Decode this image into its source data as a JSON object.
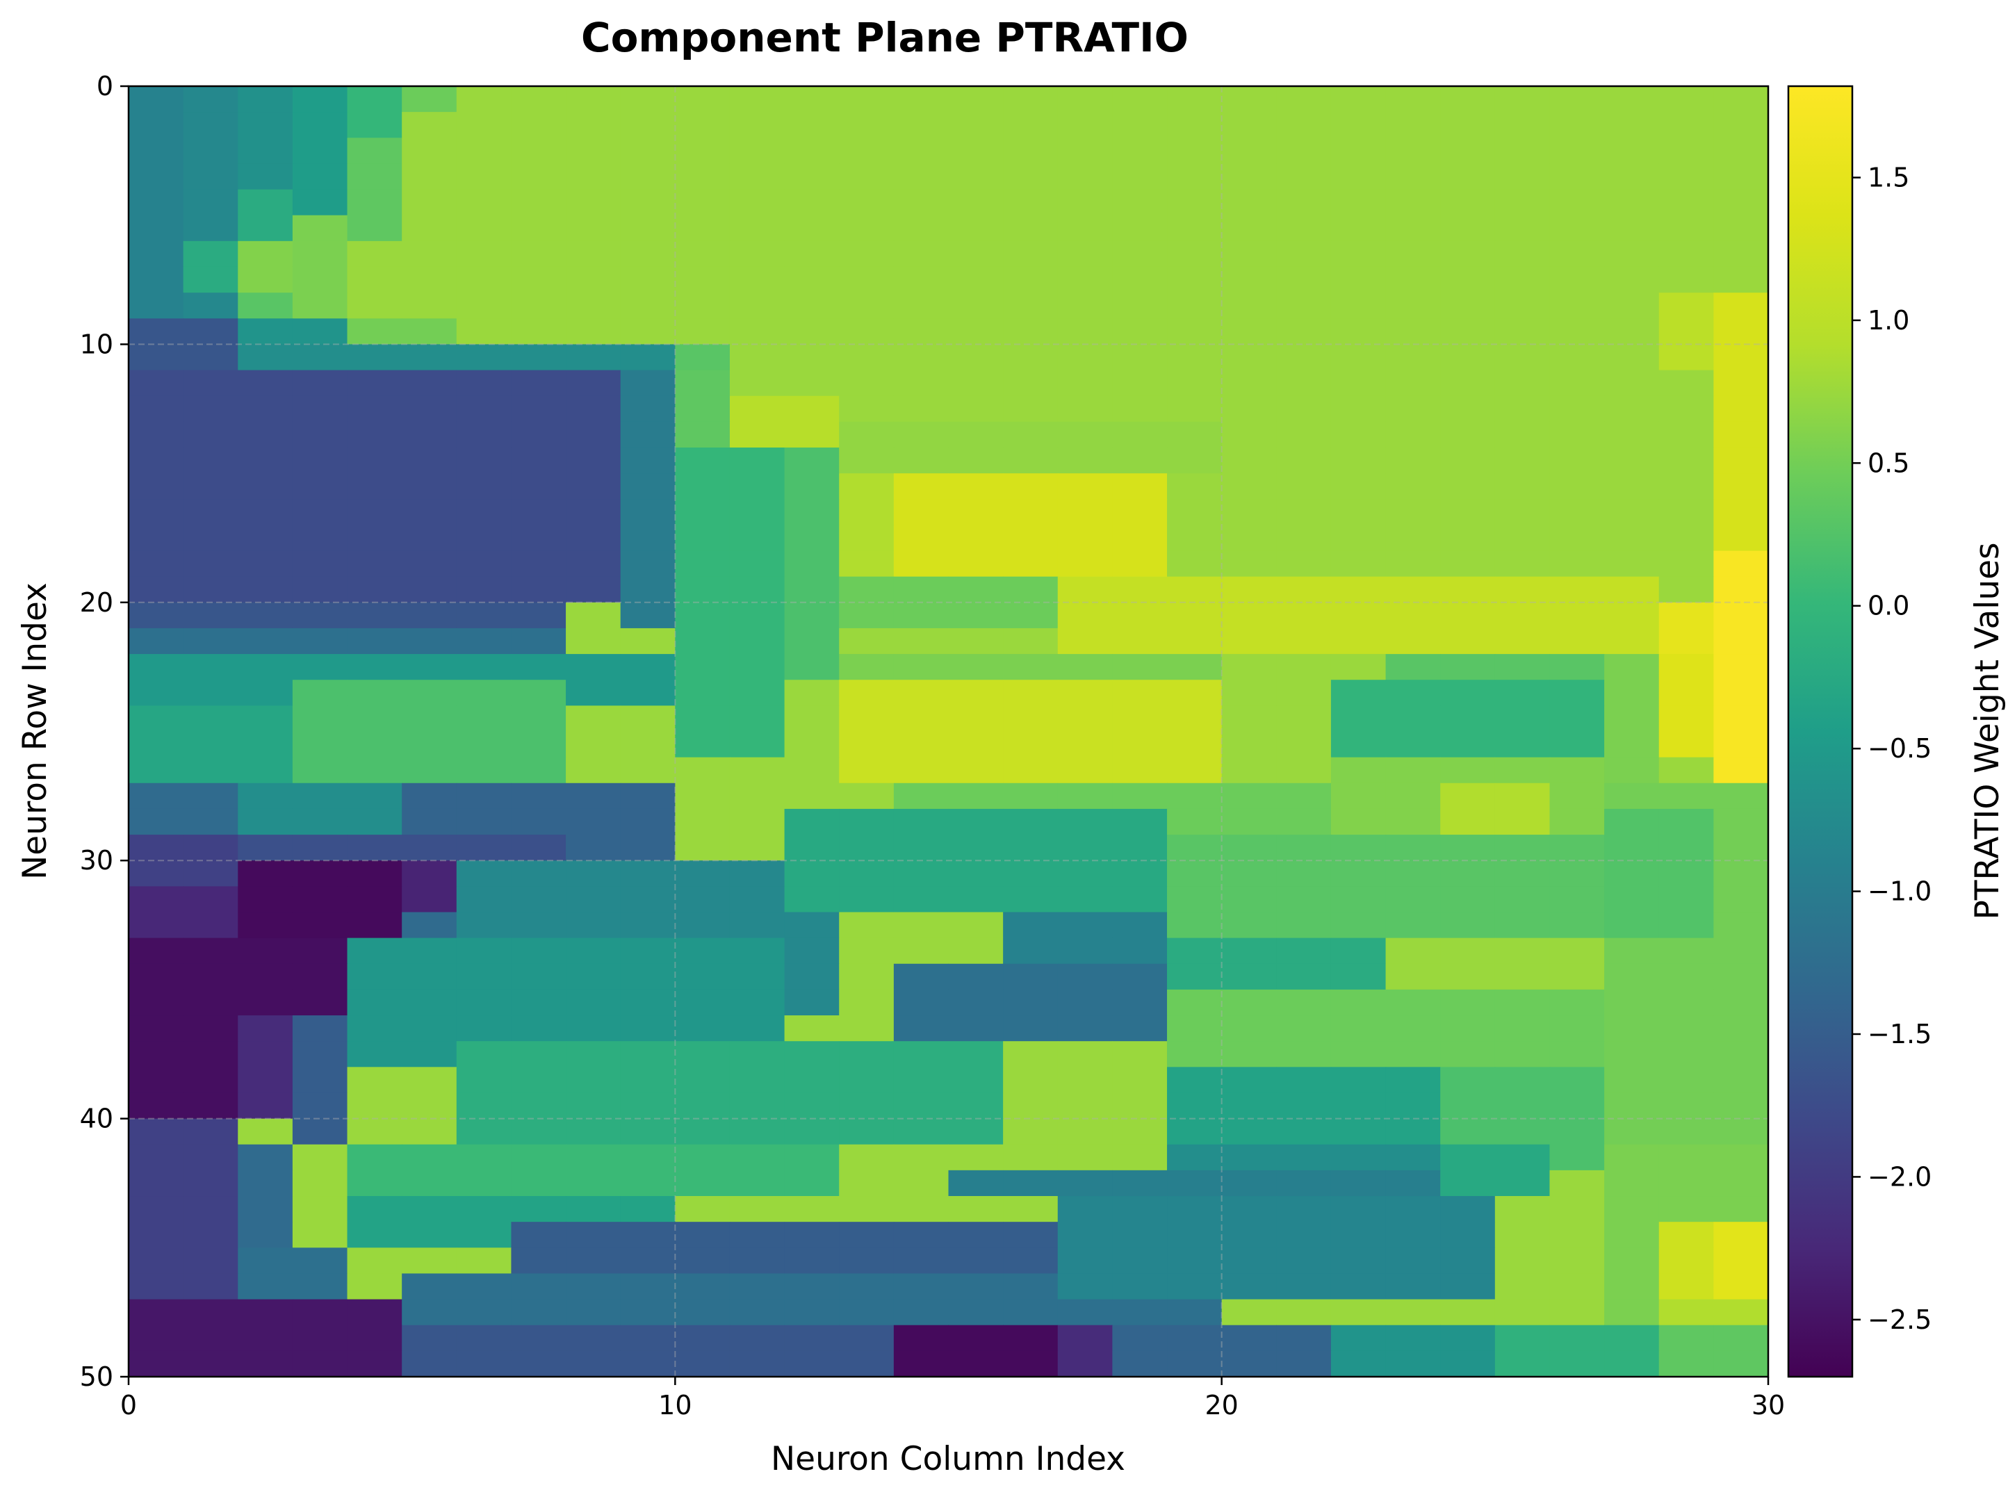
{
  "chart_data": {
    "type": "heatmap",
    "title": "Component Plane PTRATIO",
    "xlabel": "Neuron Column Index",
    "ylabel": "Neuron Row Index",
    "colorbar_label": "PTRATIO Weight Values",
    "colormap": "viridis",
    "xlim": [
      0,
      30
    ],
    "ylim": [
      50,
      0
    ],
    "x_ticks": [
      "0",
      "10",
      "20",
      "30"
    ],
    "y_ticks": [
      "0",
      "10",
      "20",
      "30",
      "40",
      "50"
    ],
    "colorbar_ticks": [
      "1.5",
      "1.0",
      "0.5",
      "0.0",
      "−0.5",
      "−1.0",
      "−1.5",
      "−2.0",
      "−2.5"
    ],
    "colorbar_tick_values": [
      1.5,
      1.0,
      0.5,
      0.0,
      -0.5,
      -1.0,
      -1.5,
      -2.0,
      -2.5
    ],
    "vmin": -2.7,
    "vmax": 1.82,
    "grid": true,
    "grid_style": "dashed",
    "n_rows": 50,
    "n_cols": 30,
    "regions": [
      {
        "rows": [
          0,
          50
        ],
        "cols": [
          0,
          30
        ],
        "value": 0.75
      },
      {
        "rows": [
          0,
          9
        ],
        "cols": [
          0,
          1
        ],
        "value": -0.9
      },
      {
        "rows": [
          0,
          9
        ],
        "cols": [
          1,
          2
        ],
        "value": -0.8
      },
      {
        "rows": [
          0,
          4
        ],
        "cols": [
          2,
          3
        ],
        "value": -0.65
      },
      {
        "rows": [
          4,
          6
        ],
        "cols": [
          2,
          3
        ],
        "value": -0.2
      },
      {
        "rows": [
          6,
          8
        ],
        "cols": [
          2,
          3
        ],
        "value": 0.6
      },
      {
        "rows": [
          8,
          9
        ],
        "cols": [
          2,
          3
        ],
        "value": 0.3
      },
      {
        "rows": [
          0,
          5
        ],
        "cols": [
          3,
          4
        ],
        "value": -0.45
      },
      {
        "rows": [
          5,
          9
        ],
        "cols": [
          3,
          4
        ],
        "value": 0.55
      },
      {
        "rows": [
          0,
          2
        ],
        "cols": [
          4,
          5
        ],
        "value": 0.0
      },
      {
        "rows": [
          2,
          6
        ],
        "cols": [
          4,
          5
        ],
        "value": 0.35
      },
      {
        "rows": [
          0,
          1
        ],
        "cols": [
          5,
          6
        ],
        "value": 0.45
      },
      {
        "rows": [
          6,
          8
        ],
        "cols": [
          1,
          2
        ],
        "value": -0.2
      },
      {
        "rows": [
          9,
          11
        ],
        "cols": [
          0,
          2
        ],
        "value": -1.6
      },
      {
        "rows": [
          9,
          10
        ],
        "cols": [
          2,
          4
        ],
        "value": -0.6
      },
      {
        "rows": [
          9,
          10
        ],
        "cols": [
          4,
          6
        ],
        "value": 0.5
      },
      {
        "rows": [
          10,
          11
        ],
        "cols": [
          2,
          10
        ],
        "value": -0.7
      },
      {
        "rows": [
          11,
          20
        ],
        "cols": [
          0,
          9
        ],
        "value": -1.75
      },
      {
        "rows": [
          20,
          21
        ],
        "cols": [
          0,
          8
        ],
        "value": -1.6
      },
      {
        "rows": [
          21,
          22
        ],
        "cols": [
          0,
          8
        ],
        "value": -1.2
      },
      {
        "rows": [
          11,
          21
        ],
        "cols": [
          9,
          10
        ],
        "value": -1.0
      },
      {
        "rows": [
          22,
          24
        ],
        "cols": [
          0,
          10
        ],
        "value": -0.5
      },
      {
        "rows": [
          23,
          27
        ],
        "cols": [
          3,
          8
        ],
        "value": 0.2
      },
      {
        "rows": [
          24,
          27
        ],
        "cols": [
          0,
          3
        ],
        "value": -0.3
      },
      {
        "rows": [
          27,
          29
        ],
        "cols": [
          0,
          2
        ],
        "value": -1.3
      },
      {
        "rows": [
          27,
          30
        ],
        "cols": [
          2,
          5
        ],
        "value": -0.7
      },
      {
        "rows": [
          27,
          30
        ],
        "cols": [
          5,
          10
        ],
        "value": -1.4
      },
      {
        "rows": [
          29,
          31
        ],
        "cols": [
          0,
          2
        ],
        "value": -1.9
      },
      {
        "rows": [
          29,
          30
        ],
        "cols": [
          2,
          8
        ],
        "value": -1.7
      },
      {
        "rows": [
          30,
          33
        ],
        "cols": [
          2,
          5
        ],
        "value": -2.6
      },
      {
        "rows": [
          30,
          32
        ],
        "cols": [
          5,
          6
        ],
        "value": -2.3
      },
      {
        "rows": [
          31,
          33
        ],
        "cols": [
          0,
          2
        ],
        "value": -2.25
      },
      {
        "rows": [
          33,
          42
        ],
        "cols": [
          0,
          2
        ],
        "value": -2.55
      },
      {
        "rows": [
          33,
          36
        ],
        "cols": [
          2,
          4
        ],
        "value": -2.55
      },
      {
        "rows": [
          36,
          40
        ],
        "cols": [
          2,
          3
        ],
        "value": -2.2
      },
      {
        "rows": [
          36,
          41
        ],
        "cols": [
          3,
          4
        ],
        "value": -1.5
      },
      {
        "rows": [
          40,
          47
        ],
        "cols": [
          0,
          2
        ],
        "value": -1.9
      },
      {
        "rows": [
          47,
          50
        ],
        "cols": [
          0,
          5
        ],
        "value": -2.45
      },
      {
        "rows": [
          45,
          47
        ],
        "cols": [
          2,
          4
        ],
        "value": -1.2
      },
      {
        "rows": [
          41,
          45
        ],
        "cols": [
          2,
          3
        ],
        "value": -1.3
      },
      {
        "rows": [
          32,
          34
        ],
        "cols": [
          5,
          7
        ],
        "value": -1.3
      },
      {
        "rows": [
          30,
          36
        ],
        "cols": [
          6,
          13
        ],
        "value": -0.8
      },
      {
        "rows": [
          33,
          38
        ],
        "cols": [
          4,
          12
        ],
        "value": -0.55
      },
      {
        "rows": [
          37,
          41
        ],
        "cols": [
          6,
          16
        ],
        "value": -0.15
      },
      {
        "rows": [
          41,
          43
        ],
        "cols": [
          4,
          13
        ],
        "value": 0.05
      },
      {
        "rows": [
          43,
          45
        ],
        "cols": [
          4,
          10
        ],
        "value": -0.35
      },
      {
        "rows": [
          44,
          46
        ],
        "cols": [
          7,
          17
        ],
        "value": -1.5
      },
      {
        "rows": [
          46,
          48
        ],
        "cols": [
          5,
          20
        ],
        "value": -1.2
      },
      {
        "rows": [
          48,
          50
        ],
        "cols": [
          5,
          14
        ],
        "value": -1.6
      },
      {
        "rows": [
          48,
          50
        ],
        "cols": [
          14,
          17
        ],
        "value": -2.6
      },
      {
        "rows": [
          48,
          50
        ],
        "cols": [
          17,
          18
        ],
        "value": -2.2
      },
      {
        "rows": [
          48,
          50
        ],
        "cols": [
          18,
          22
        ],
        "value": -1.4
      },
      {
        "rows": [
          48,
          50
        ],
        "cols": [
          22,
          25
        ],
        "value": -0.6
      },
      {
        "rows": [
          48,
          50
        ],
        "cols": [
          25,
          28
        ],
        "value": -0.1
      },
      {
        "rows": [
          48,
          50
        ],
        "cols": [
          28,
          30
        ],
        "value": 0.35
      },
      {
        "rows": [
          43,
          47
        ],
        "cols": [
          17,
          25
        ],
        "value": -0.85
      },
      {
        "rows": [
          42,
          43
        ],
        "cols": [
          15,
          24
        ],
        "value": -0.95
      },
      {
        "rows": [
          40,
          42
        ],
        "cols": [
          19,
          24
        ],
        "value": -0.7
      },
      {
        "rows": [
          38,
          42
        ],
        "cols": [
          24,
          27
        ],
        "value": 0.2
      },
      {
        "rows": [
          41,
          48
        ],
        "cols": [
          27,
          30
        ],
        "value": 0.55
      },
      {
        "rows": [
          44,
          48
        ],
        "cols": [
          28,
          29
        ],
        "value": 1.2
      },
      {
        "rows": [
          44,
          48
        ],
        "cols": [
          29,
          30
        ],
        "value": 1.45
      },
      {
        "rows": [
          47,
          48
        ],
        "cols": [
          28,
          30
        ],
        "value": 0.9
      },
      {
        "rows": [
          10,
          11
        ],
        "cols": [
          10,
          11
        ],
        "value": 0.3
      },
      {
        "rows": [
          11,
          14
        ],
        "cols": [
          10,
          11
        ],
        "value": 0.35
      },
      {
        "rows": [
          14,
          26
        ],
        "cols": [
          10,
          12
        ],
        "value": 0.0
      },
      {
        "rows": [
          12,
          14
        ],
        "cols": [
          11,
          13
        ],
        "value": 0.95
      },
      {
        "rows": [
          14,
          23
        ],
        "cols": [
          12,
          13
        ],
        "value": 0.2
      },
      {
        "rows": [
          13,
          15
        ],
        "cols": [
          13,
          20
        ],
        "value": 0.7
      },
      {
        "rows": [
          15,
          19
        ],
        "cols": [
          13,
          14
        ],
        "value": 0.9
      },
      {
        "rows": [
          15,
          19
        ],
        "cols": [
          14,
          19
        ],
        "value": 1.3
      },
      {
        "rows": [
          19,
          21
        ],
        "cols": [
          13,
          17
        ],
        "value": 0.45
      },
      {
        "rows": [
          19,
          22
        ],
        "cols": [
          17,
          28
        ],
        "value": 1.1
      },
      {
        "rows": [
          20,
          22
        ],
        "cols": [
          28,
          29
        ],
        "value": 1.5
      },
      {
        "rows": [
          18,
          27
        ],
        "cols": [
          29,
          30
        ],
        "value": 1.75
      },
      {
        "rows": [
          8,
          18
        ],
        "cols": [
          29,
          30
        ],
        "value": 1.3
      },
      {
        "rows": [
          8,
          11
        ],
        "cols": [
          28,
          29
        ],
        "value": 1.0
      },
      {
        "rows": [
          22,
          23
        ],
        "cols": [
          13,
          21
        ],
        "value": 0.55
      },
      {
        "rows": [
          23,
          27
        ],
        "cols": [
          13,
          20
        ],
        "value": 1.15
      },
      {
        "rows": [
          22,
          28
        ],
        "cols": [
          20,
          22
        ],
        "value": 0.75
      },
      {
        "rows": [
          23,
          26
        ],
        "cols": [
          22,
          27
        ],
        "value": -0.05
      },
      {
        "rows": [
          22,
          23
        ],
        "cols": [
          23,
          27
        ],
        "value": 0.3
      },
      {
        "rows": [
          26,
          29
        ],
        "cols": [
          22,
          27
        ],
        "value": 0.6
      },
      {
        "rows": [
          27,
          29
        ],
        "cols": [
          24,
          26
        ],
        "value": 0.9
      },
      {
        "rows": [
          22,
          27
        ],
        "cols": [
          27,
          28
        ],
        "value": 0.55
      },
      {
        "rows": [
          22,
          26
        ],
        "cols": [
          28,
          29
        ],
        "value": 1.4
      },
      {
        "rows": [
          27,
          30
        ],
        "cols": [
          14,
          22
        ],
        "value": 0.45
      },
      {
        "rows": [
          28,
          32
        ],
        "cols": [
          12,
          19
        ],
        "value": -0.25
      },
      {
        "rows": [
          29,
          33
        ],
        "cols": [
          19,
          27
        ],
        "value": 0.3
      },
      {
        "rows": [
          32,
          35
        ],
        "cols": [
          16,
          19
        ],
        "value": -0.9
      },
      {
        "rows": [
          34,
          37
        ],
        "cols": [
          14,
          19
        ],
        "value": -1.2
      },
      {
        "rows": [
          33,
          35
        ],
        "cols": [
          19,
          23
        ],
        "value": -0.2
      },
      {
        "rows": [
          35,
          38
        ],
        "cols": [
          19,
          27
        ],
        "value": 0.45
      },
      {
        "rows": [
          27,
          41
        ],
        "cols": [
          27,
          30
        ],
        "value": 0.5
      },
      {
        "rows": [
          28,
          33
        ],
        "cols": [
          27,
          29
        ],
        "value": 0.25
      },
      {
        "rows": [
          38,
          41
        ],
        "cols": [
          19,
          24
        ],
        "value": -0.35
      },
      {
        "rows": [
          41,
          43
        ],
        "cols": [
          24,
          26
        ],
        "value": -0.25
      }
    ]
  }
}
